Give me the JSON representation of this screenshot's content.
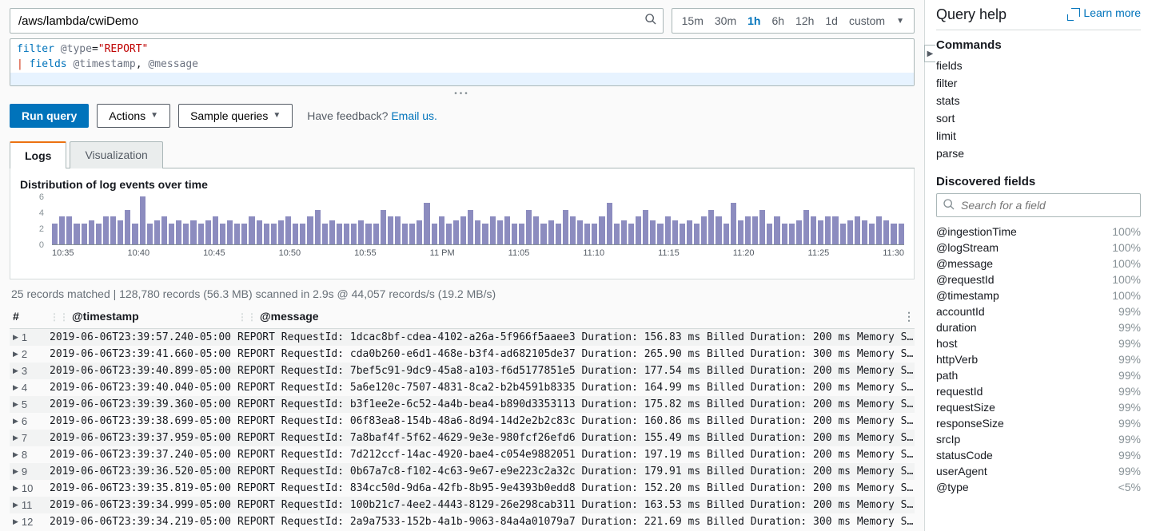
{
  "log_group_input": {
    "value": "/aws/lambda/cwiDemo"
  },
  "time_range": {
    "options": [
      "15m",
      "30m",
      "1h",
      "6h",
      "12h",
      "1d",
      "custom"
    ],
    "active": "1h"
  },
  "query_editor": {
    "line1_kw": "filter",
    "line1_field": "@type",
    "line1_eq": "=",
    "line1_val": "\"REPORT\"",
    "line2_pipe": "|",
    "line2_kw": "fields",
    "line2_f1": "@timestamp",
    "line2_sep": ", ",
    "line2_f2": "@message"
  },
  "buttons": {
    "run": "Run query",
    "actions": "Actions",
    "sample": "Sample queries"
  },
  "feedback": {
    "text": "Have feedback?",
    "link": "Email us."
  },
  "tabs": {
    "logs": "Logs",
    "viz": "Visualization"
  },
  "chart": {
    "title": "Distribution of log events over time",
    "type": "bar",
    "y_ticks": [
      "6",
      "4",
      "2",
      "0"
    ],
    "x_ticks": [
      "10:35",
      "10:40",
      "10:45",
      "10:50",
      "10:55",
      "11 PM",
      "11:05",
      "11:10",
      "11:15",
      "11:20",
      "11:25",
      "11:30"
    ],
    "bar_color": "#8c8cbf",
    "background_color": "#ffffff",
    "y_max": 7,
    "values": [
      3,
      4,
      4,
      3,
      3,
      3.5,
      3,
      4,
      4,
      3.5,
      5,
      3,
      7,
      3,
      3.5,
      4,
      3,
      3.5,
      3,
      3.5,
      3,
      3.5,
      4,
      3,
      3.5,
      3,
      3,
      4,
      3.5,
      3,
      3,
      3.5,
      4,
      3,
      3,
      4,
      5,
      3,
      3.5,
      3,
      3,
      3,
      3.5,
      3,
      3,
      5,
      4,
      4,
      3,
      3,
      3.5,
      6,
      3,
      4,
      3,
      3.5,
      4,
      5,
      3.5,
      3,
      4,
      3.5,
      4,
      3,
      3,
      5,
      4,
      3,
      3.5,
      3,
      5,
      4,
      3.5,
      3,
      3,
      4,
      6,
      3,
      3.5,
      3,
      4,
      5,
      3.5,
      3,
      4,
      3.5,
      3,
      3.5,
      3,
      4,
      5,
      4,
      3,
      6,
      3.5,
      4,
      4,
      5,
      3,
      4,
      3,
      3,
      3.5,
      5,
      4,
      3.5,
      4,
      4,
      3,
      3.5,
      4,
      3.5,
      3,
      4,
      3.5,
      3,
      3
    ]
  },
  "summary": "25 records matched | 128,780 records (56.3 MB) scanned in 2.9s @ 44,057 records/s (19.2 MB/s)",
  "table": {
    "headers": {
      "n": "#",
      "ts": "@timestamp",
      "msg": "@message"
    },
    "rows": [
      {
        "n": "1",
        "ts": "2019-06-06T23:39:57.240-05:00",
        "msg": "REPORT RequestId: 1dcac8bf-cdea-4102-a26a-5f966f5aaee3 Duration: 156.83 ms Billed Duration: 200 ms Memory Size: 1…"
      },
      {
        "n": "2",
        "ts": "2019-06-06T23:39:41.660-05:00",
        "msg": "REPORT RequestId: cda0b260-e6d1-468e-b3f4-ad682105de37 Duration: 265.90 ms Billed Duration: 300 ms Memory Size: 1…"
      },
      {
        "n": "3",
        "ts": "2019-06-06T23:39:40.899-05:00",
        "msg": "REPORT RequestId: 7bef5c91-9dc9-45a8-a103-f6d5177851e5 Duration: 177.54 ms Billed Duration: 200 ms Memory Size: 1…"
      },
      {
        "n": "4",
        "ts": "2019-06-06T23:39:40.040-05:00",
        "msg": "REPORT RequestId: 5a6e120c-7507-4831-8ca2-b2b4591b8335 Duration: 164.99 ms Billed Duration: 200 ms Memory Size: 1…"
      },
      {
        "n": "5",
        "ts": "2019-06-06T23:39:39.360-05:00",
        "msg": "REPORT RequestId: b3f1ee2e-6c52-4a4b-bea4-b890d3353113 Duration: 175.82 ms Billed Duration: 200 ms Memory Size: 1…"
      },
      {
        "n": "6",
        "ts": "2019-06-06T23:39:38.699-05:00",
        "msg": "REPORT RequestId: 06f83ea8-154b-48a6-8d94-14d2e2b2c83c Duration: 160.86 ms Billed Duration: 200 ms Memory Size: 1…"
      },
      {
        "n": "7",
        "ts": "2019-06-06T23:39:37.959-05:00",
        "msg": "REPORT RequestId: 7a8baf4f-5f62-4629-9e3e-980fcf26efd6 Duration: 155.49 ms Billed Duration: 200 ms Memory Size: 1…"
      },
      {
        "n": "8",
        "ts": "2019-06-06T23:39:37.240-05:00",
        "msg": "REPORT RequestId: 7d212ccf-14ac-4920-bae4-c054e9882051 Duration: 197.19 ms Billed Duration: 200 ms Memory Size: 1…"
      },
      {
        "n": "9",
        "ts": "2019-06-06T23:39:36.520-05:00",
        "msg": "REPORT RequestId: 0b67a7c8-f102-4c63-9e67-e9e223c2a32c Duration: 179.91 ms Billed Duration: 200 ms Memory Size: 1…"
      },
      {
        "n": "10",
        "ts": "2019-06-06T23:39:35.819-05:00",
        "msg": "REPORT RequestId: 834cc50d-9d6a-42fb-8b95-9e4393b0edd8 Duration: 152.20 ms Billed Duration: 200 ms Memory Size: 1…"
      },
      {
        "n": "11",
        "ts": "2019-06-06T23:39:34.999-05:00",
        "msg": "REPORT RequestId: 100b21c7-4ee2-4443-8129-26e298cab311 Duration: 163.53 ms Billed Duration: 200 ms Memory Size: 1…"
      },
      {
        "n": "12",
        "ts": "2019-06-06T23:39:34.219-05:00",
        "msg": "REPORT RequestId: 2a9a7533-152b-4a1b-9063-84a4a01079a7 Duration: 221.69 ms Billed Duration: 300 ms Memory Size: 1…"
      }
    ]
  },
  "side": {
    "title": "Query help",
    "learn": "Learn more",
    "commands_h": "Commands",
    "commands": [
      "fields",
      "filter",
      "stats",
      "sort",
      "limit",
      "parse"
    ],
    "discovered_h": "Discovered fields",
    "search_placeholder": "Search for a field",
    "fields": [
      {
        "name": "@ingestionTime",
        "pct": "100%"
      },
      {
        "name": "@logStream",
        "pct": "100%"
      },
      {
        "name": "@message",
        "pct": "100%"
      },
      {
        "name": "@requestId",
        "pct": "100%"
      },
      {
        "name": "@timestamp",
        "pct": "100%"
      },
      {
        "name": "accountId",
        "pct": "99%"
      },
      {
        "name": "duration",
        "pct": "99%"
      },
      {
        "name": "host",
        "pct": "99%"
      },
      {
        "name": "httpVerb",
        "pct": "99%"
      },
      {
        "name": "path",
        "pct": "99%"
      },
      {
        "name": "requestId",
        "pct": "99%"
      },
      {
        "name": "requestSize",
        "pct": "99%"
      },
      {
        "name": "responseSize",
        "pct": "99%"
      },
      {
        "name": "srcIp",
        "pct": "99%"
      },
      {
        "name": "statusCode",
        "pct": "99%"
      },
      {
        "name": "userAgent",
        "pct": "99%"
      },
      {
        "name": "@type",
        "pct": "<5%"
      }
    ]
  }
}
